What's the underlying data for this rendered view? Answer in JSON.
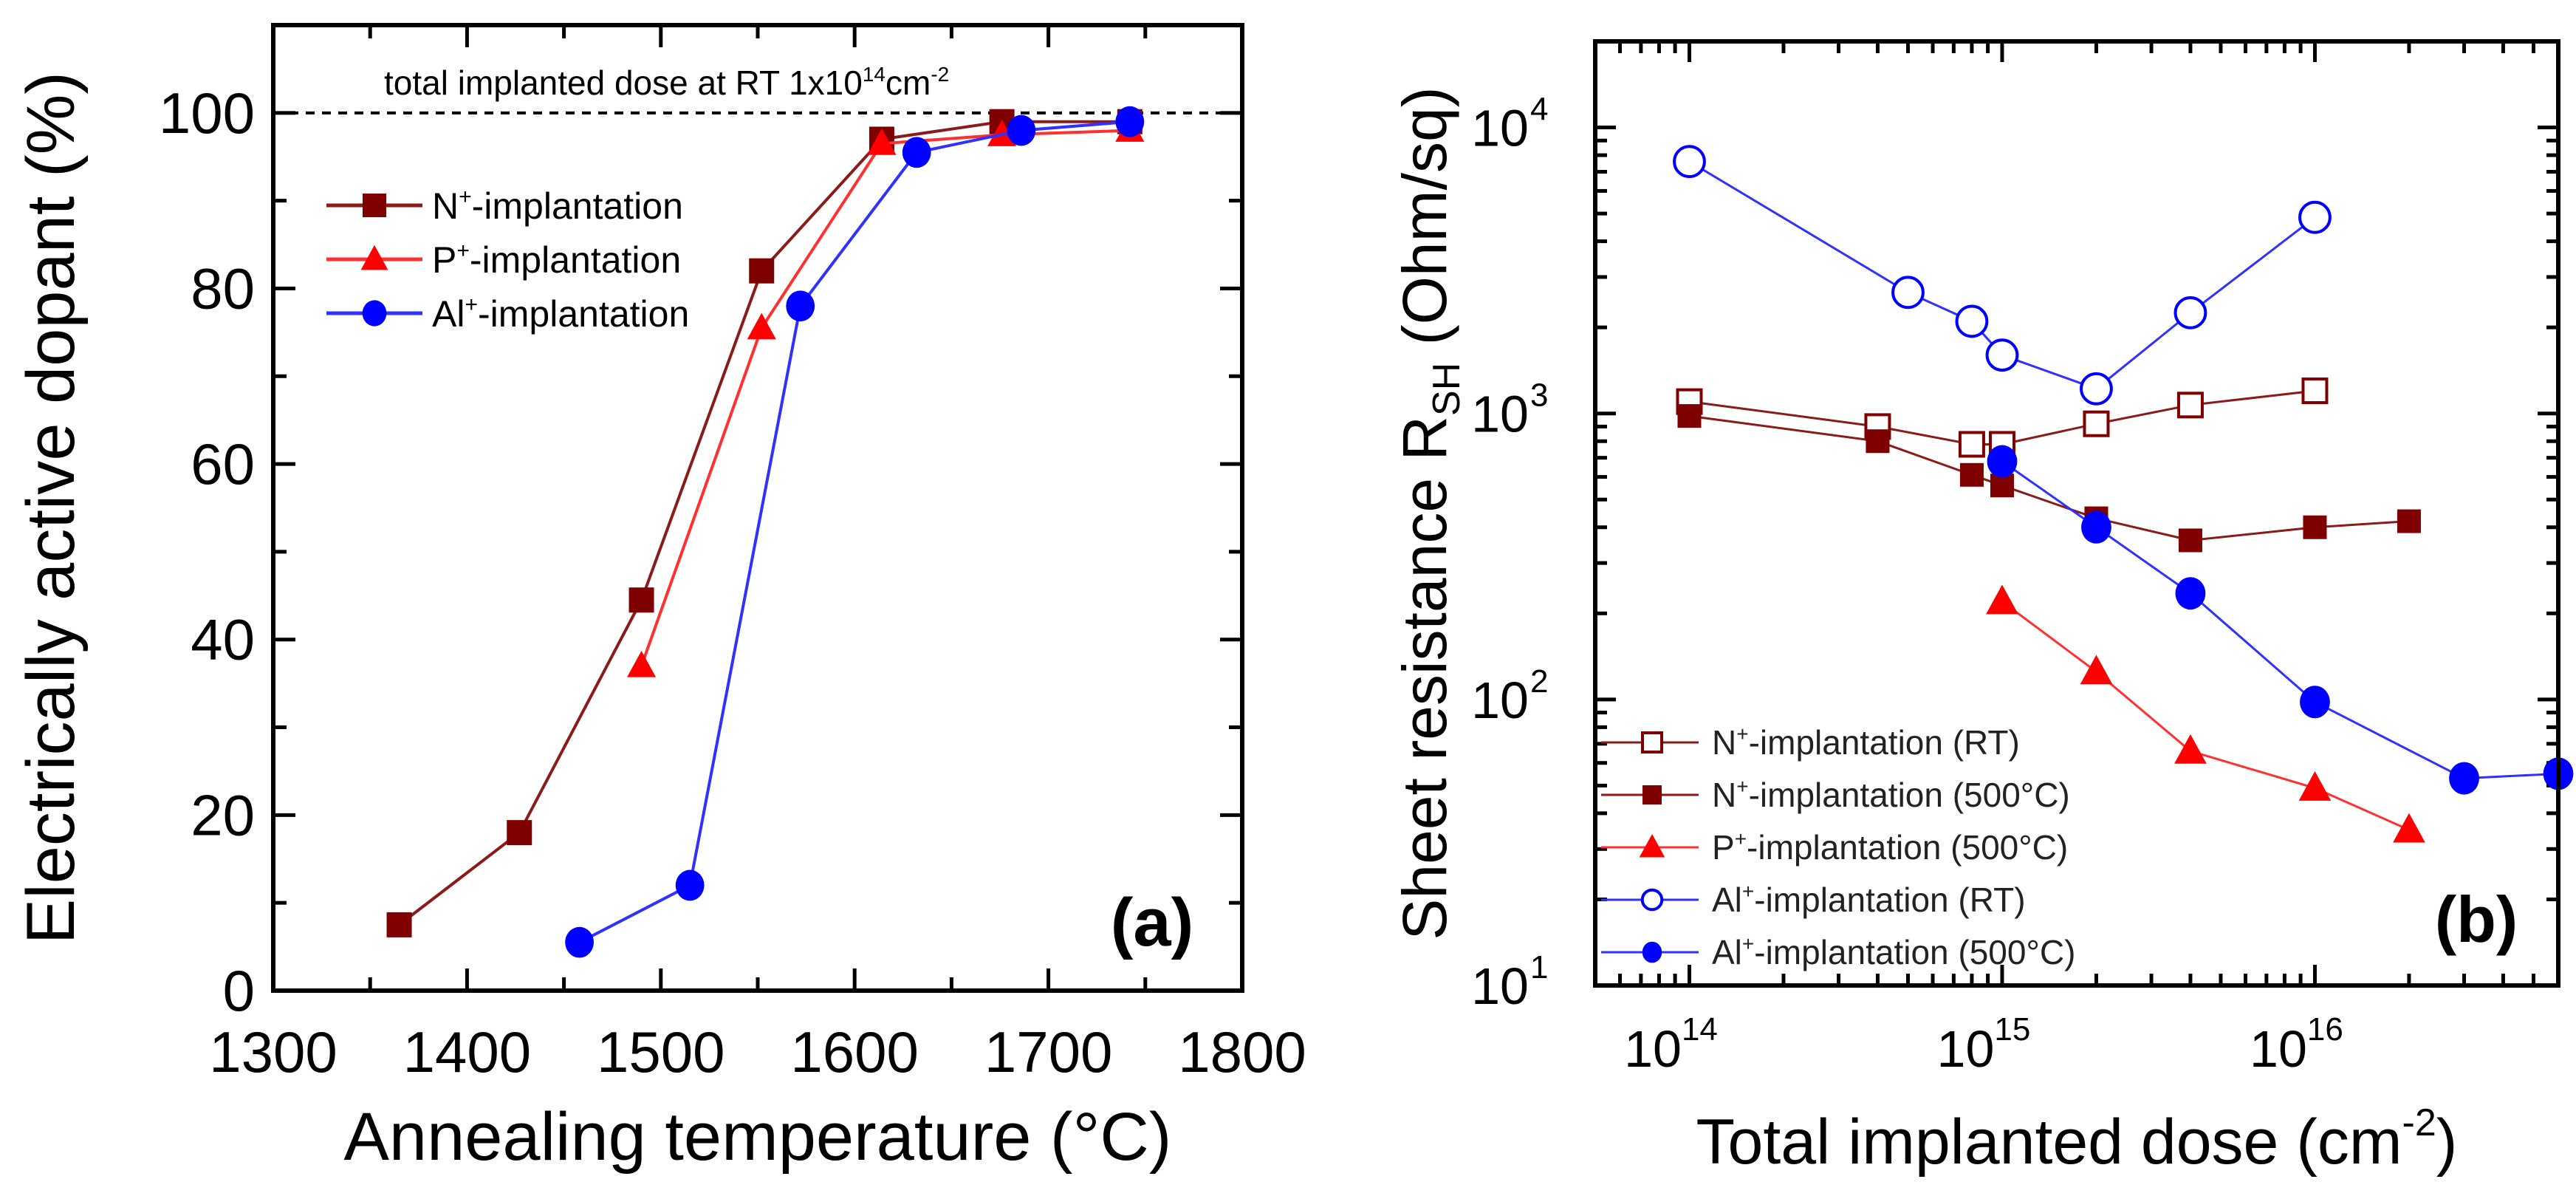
{
  "colors": {
    "N": "#7f0000",
    "P": "#ff0000",
    "Al": "#0000ff",
    "N_line": "#8b1a1a",
    "P_line": "#ff3030",
    "Al_line": "#3030ff"
  },
  "chart_data": [
    {
      "type": "line",
      "panel_label": "(a)",
      "xlabel": "Annealing temperature (°C)",
      "ylabel": "Electrically active dopant (%)",
      "xlim": [
        1300,
        1800
      ],
      "ylim": [
        0,
        110
      ],
      "xticks": [
        1300,
        1400,
        1500,
        1600,
        1700,
        1800
      ],
      "yticks": [
        0,
        20,
        40,
        60,
        80,
        100
      ],
      "grid": false,
      "legend_position": "upper-left",
      "reference_line": {
        "y": 100,
        "style": "dashed"
      },
      "annotation": {
        "text": "total implanted dose at RT 1x10",
        "sup1": "14",
        "mid": "cm",
        "sup2": "-2"
      },
      "series": [
        {
          "key": "N",
          "ion": "N",
          "sup": "+",
          "rest": "-implantation",
          "marker": "square-filled",
          "x": [
            1365,
            1427,
            1490,
            1552,
            1614,
            1676,
            1742
          ],
          "y": [
            7.5,
            18,
            44.5,
            82,
            97,
            99,
            99
          ]
        },
        {
          "key": "P",
          "ion": "P",
          "sup": "+",
          "rest": "-implantation",
          "marker": "triangle-filled",
          "x": [
            1490,
            1552,
            1614,
            1676,
            1742
          ],
          "y": [
            37,
            75.5,
            96.5,
            97.5,
            98
          ]
        },
        {
          "key": "Al",
          "ion": "Al",
          "sup": "+",
          "rest": "-implantation",
          "marker": "circle-filled",
          "x": [
            1458,
            1515,
            1572,
            1632,
            1686,
            1742
          ],
          "y": [
            5.5,
            12,
            78,
            95.5,
            98,
            99
          ]
        }
      ]
    },
    {
      "type": "line",
      "panel_label": "(b)",
      "xlabel": "Total implanted dose (cm",
      "xlabel_sup": "-2",
      "xlabel_end": ")",
      "ylabel": "Sheet resistance R",
      "ylabel_sub": "SH",
      "ylabel_end": " (Ohm/sq)",
      "xscale": "log",
      "yscale": "log",
      "xlim": [
        50000000000000.0,
        6e+16
      ],
      "ylim": [
        10,
        20000
      ],
      "xticks": [
        {
          "base": "10",
          "exp": "14",
          "value": 100000000000000.0
        },
        {
          "base": "10",
          "exp": "15",
          "value": 1000000000000000.0
        },
        {
          "base": "10",
          "exp": "16",
          "value": 1e+16
        }
      ],
      "yticks": [
        {
          "base": "10",
          "exp": "1",
          "value": 10
        },
        {
          "base": "10",
          "exp": "2",
          "value": 100
        },
        {
          "base": "10",
          "exp": "3",
          "value": 1000
        },
        {
          "base": "10",
          "exp": "4",
          "value": 10000
        }
      ],
      "grid": false,
      "legend_position": "lower-left",
      "series": [
        {
          "key": "N",
          "ion": "N",
          "sup": "+",
          "rest": "-implantation (RT)",
          "marker": "square-open",
          "x": [
            100000000000000.0,
            400000000000000.0,
            800000000000000.0,
            1000000000000000.0,
            2000000000000000.0,
            4000000000000000.0,
            1e+16
          ],
          "y": [
            1100,
            900,
            780,
            780,
            920,
            1070,
            1200
          ]
        },
        {
          "key": "N",
          "ion": "N",
          "sup": "+",
          "rest": "-implantation (500°C)",
          "marker": "square-filled",
          "x": [
            100000000000000.0,
            400000000000000.0,
            800000000000000.0,
            1000000000000000.0,
            2000000000000000.0,
            4000000000000000.0,
            1e+16,
            2e+16
          ],
          "y": [
            980,
            800,
            610,
            560,
            430,
            360,
            400,
            420
          ]
        },
        {
          "key": "P",
          "ion": "P",
          "sup": "+",
          "rest": "-implantation (500°C)",
          "marker": "triangle-filled",
          "x": [
            1000000000000000.0,
            2000000000000000.0,
            4000000000000000.0,
            1e+16,
            2e+16
          ],
          "y": [
            220,
            125,
            66,
            49,
            35
          ]
        },
        {
          "key": "Al",
          "ion": "Al",
          "sup": "+",
          "rest": "-implantation (RT)",
          "marker": "circle-open",
          "x": [
            100000000000000.0,
            500000000000000.0,
            800000000000000.0,
            1000000000000000.0,
            2000000000000000.0,
            4000000000000000.0,
            1e+16
          ],
          "y": [
            7600,
            2650,
            2100,
            1600,
            1220,
            2250,
            4850
          ]
        },
        {
          "key": "Al",
          "ion": "Al",
          "sup": "+",
          "rest": "-implantation (500°C)",
          "marker": "circle-filled",
          "x": [
            1000000000000000.0,
            2000000000000000.0,
            4000000000000000.0,
            1e+16,
            3e+16,
            6e+16
          ],
          "y": [
            680,
            400,
            235,
            98,
            53,
            55
          ]
        }
      ]
    }
  ]
}
